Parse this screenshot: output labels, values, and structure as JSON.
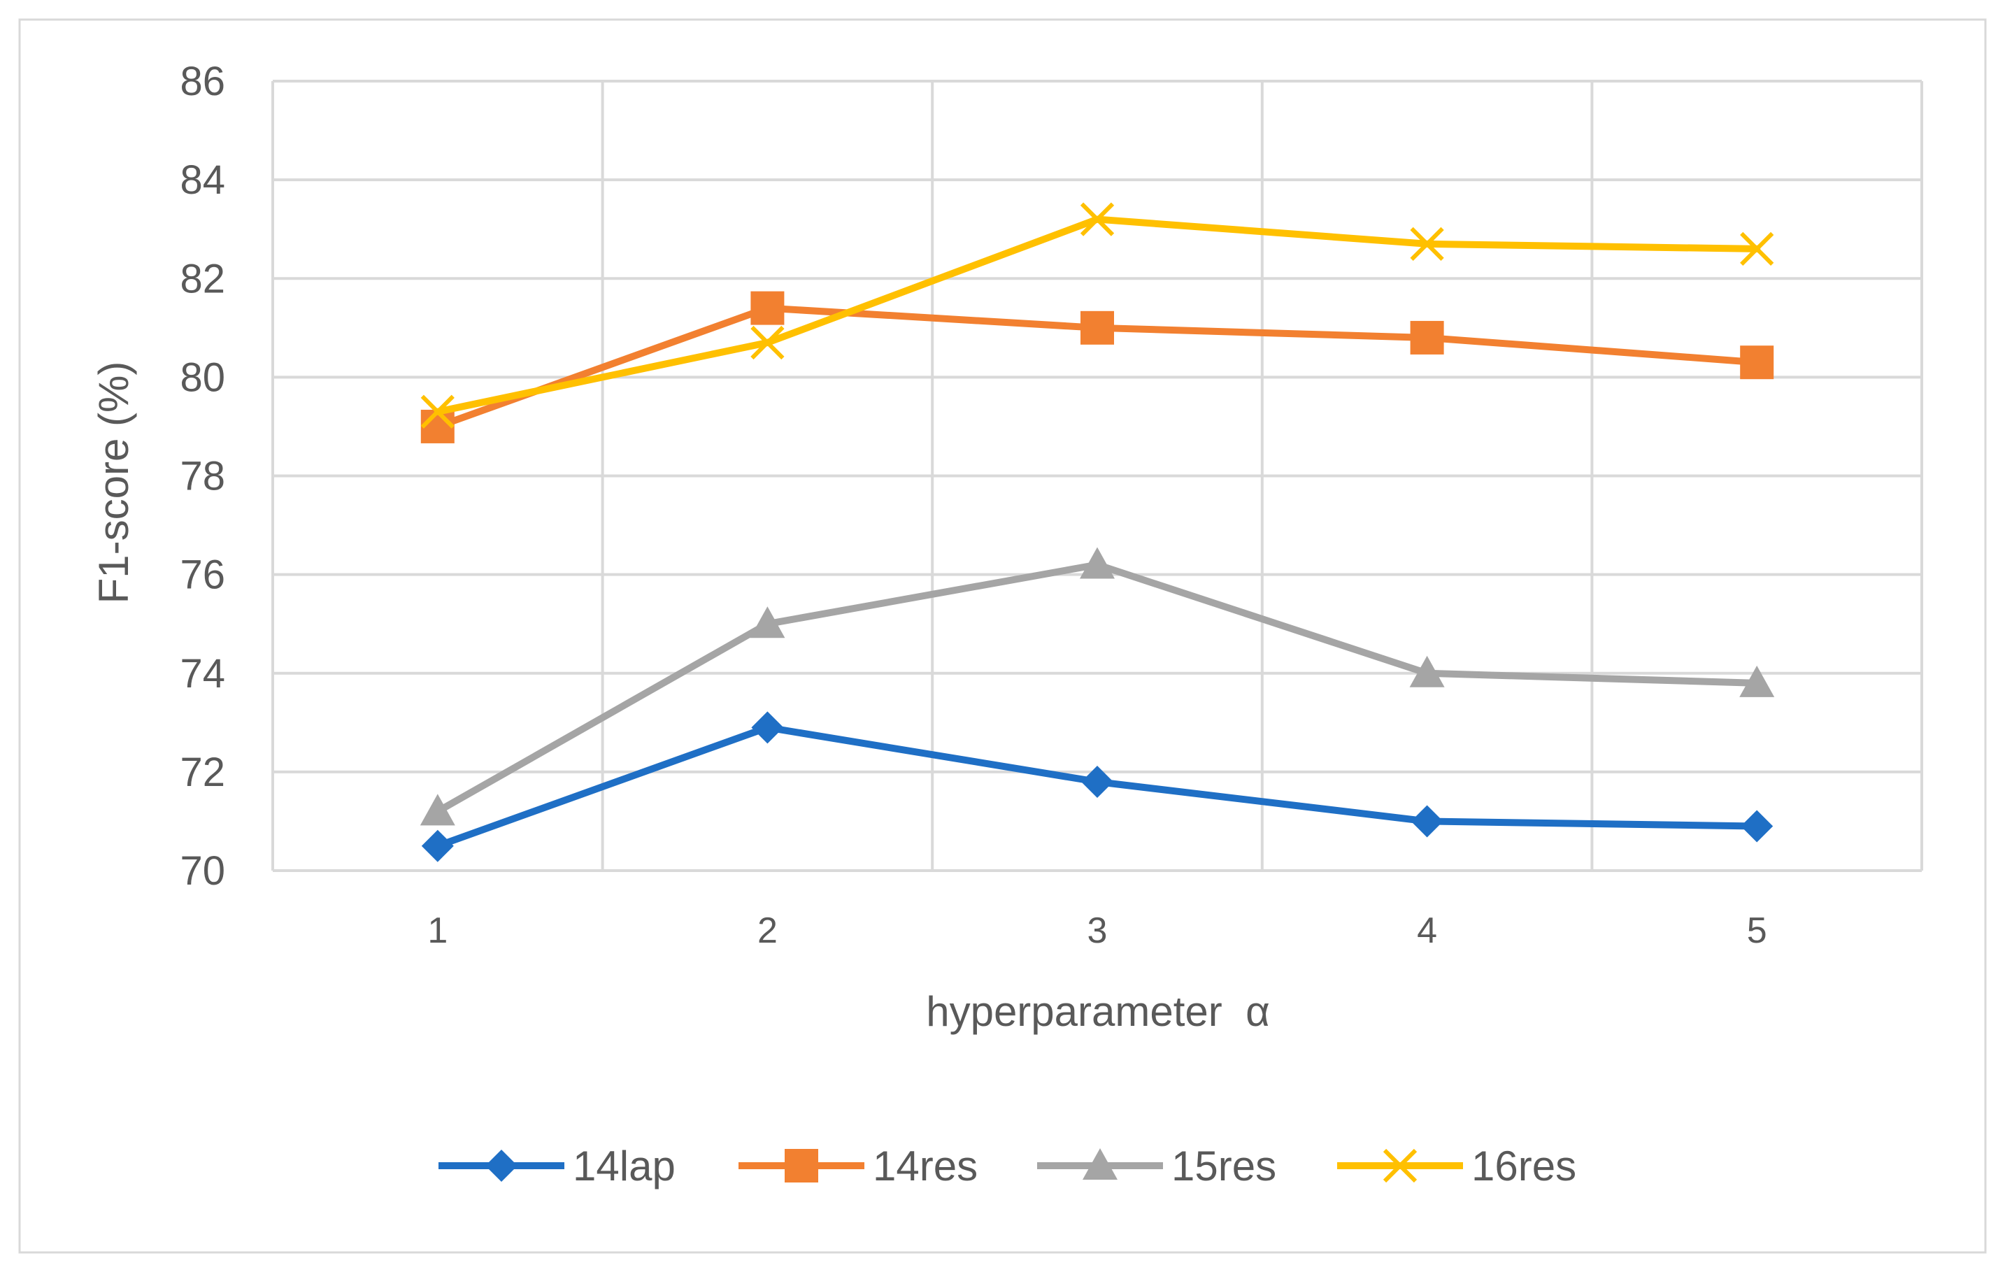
{
  "chart_data": {
    "type": "line",
    "title": "",
    "xlabel": "hyperparameter  α",
    "ylabel": "F1-score  (%)",
    "categories": [
      "1",
      "2",
      "3",
      "4",
      "5"
    ],
    "ylim": [
      70,
      86
    ],
    "yticks": [
      70,
      72,
      74,
      76,
      78,
      80,
      82,
      84,
      86
    ],
    "grid": true,
    "legend_position": "bottom",
    "series": [
      {
        "name": "14lap",
        "values": [
          70.5,
          72.9,
          71.8,
          71.0,
          70.9
        ],
        "color": "#1F6FC5",
        "marker": "diamond"
      },
      {
        "name": "14res",
        "values": [
          79.0,
          81.4,
          81.0,
          80.8,
          80.3
        ],
        "color": "#F28030",
        "marker": "square"
      },
      {
        "name": "15res",
        "values": [
          71.2,
          75.0,
          76.2,
          74.0,
          73.8
        ],
        "color": "#A5A5A5",
        "marker": "triangle"
      },
      {
        "name": "16res",
        "values": [
          79.3,
          80.7,
          83.2,
          82.7,
          82.6
        ],
        "color": "#FFC000",
        "marker": "x"
      }
    ]
  }
}
